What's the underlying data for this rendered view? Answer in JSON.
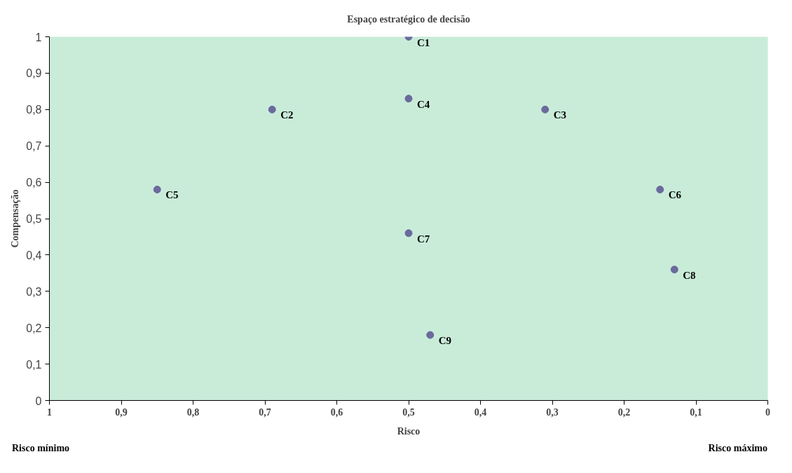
{
  "chart_data": {
    "type": "scatter",
    "title": "Espaço estratégico de decisão",
    "xlabel": "Risco",
    "ylabel": "Compensação",
    "xlim": [
      1,
      0
    ],
    "ylim": [
      0,
      1
    ],
    "xticks": [
      {
        "value": 1,
        "label": "1"
      },
      {
        "value": 0.9,
        "label": "0,9"
      },
      {
        "value": 0.8,
        "label": "0,8"
      },
      {
        "value": 0.7,
        "label": "0,7"
      },
      {
        "value": 0.6,
        "label": "0,6"
      },
      {
        "value": 0.5,
        "label": "0,5"
      },
      {
        "value": 0.4,
        "label": "0,4"
      },
      {
        "value": 0.3,
        "label": "0,3"
      },
      {
        "value": 0.2,
        "label": "0,2"
      },
      {
        "value": 0.1,
        "label": "0,1"
      },
      {
        "value": 0,
        "label": "0"
      }
    ],
    "yticks": [
      0,
      {
        "value": 0.1,
        "label": "0,1"
      },
      {
        "value": 0.2,
        "label": "0,2"
      },
      {
        "value": 0.3,
        "label": "0,3"
      },
      {
        "value": 0.4,
        "label": "0,4"
      },
      {
        "value": 0.5,
        "label": "0,5"
      },
      {
        "value": 0.6,
        "label": "0,6"
      },
      {
        "value": 0.7,
        "label": "0,7"
      },
      {
        "value": 0.8,
        "label": "0,8"
      },
      {
        "value": 0.9,
        "label": "0,9"
      },
      1
    ],
    "series": [
      {
        "name": "C1",
        "color": "#6a6a9c",
        "x": [
          0.5
        ],
        "values": [
          1.0
        ]
      },
      {
        "name": "C2",
        "color": "#6a6a9c",
        "x": [
          0.69
        ],
        "values": [
          0.8
        ]
      },
      {
        "name": "C3",
        "color": "#6a6a9c",
        "x": [
          0.31
        ],
        "values": [
          0.8
        ]
      },
      {
        "name": "C4",
        "color": "#6a6a9c",
        "x": [
          0.5
        ],
        "values": [
          0.83
        ]
      },
      {
        "name": "C5",
        "color": "#6a6a9c",
        "x": [
          0.85
        ],
        "values": [
          0.58
        ]
      },
      {
        "name": "C6",
        "color": "#6a6a9c",
        "x": [
          0.15
        ],
        "values": [
          0.58
        ]
      },
      {
        "name": "C7",
        "color": "#6a6a9c",
        "x": [
          0.5
        ],
        "values": [
          0.46
        ]
      },
      {
        "name": "C8",
        "color": "#6a6a9c",
        "x": [
          0.13
        ],
        "values": [
          0.36
        ]
      },
      {
        "name": "C9",
        "color": "#6a6a9c",
        "x": [
          0.47
        ],
        "values": [
          0.18
        ]
      }
    ],
    "marker": "circle",
    "grid": false,
    "legend": false,
    "annotations": [
      "Risco mínimo",
      "Risco máximo"
    ]
  }
}
